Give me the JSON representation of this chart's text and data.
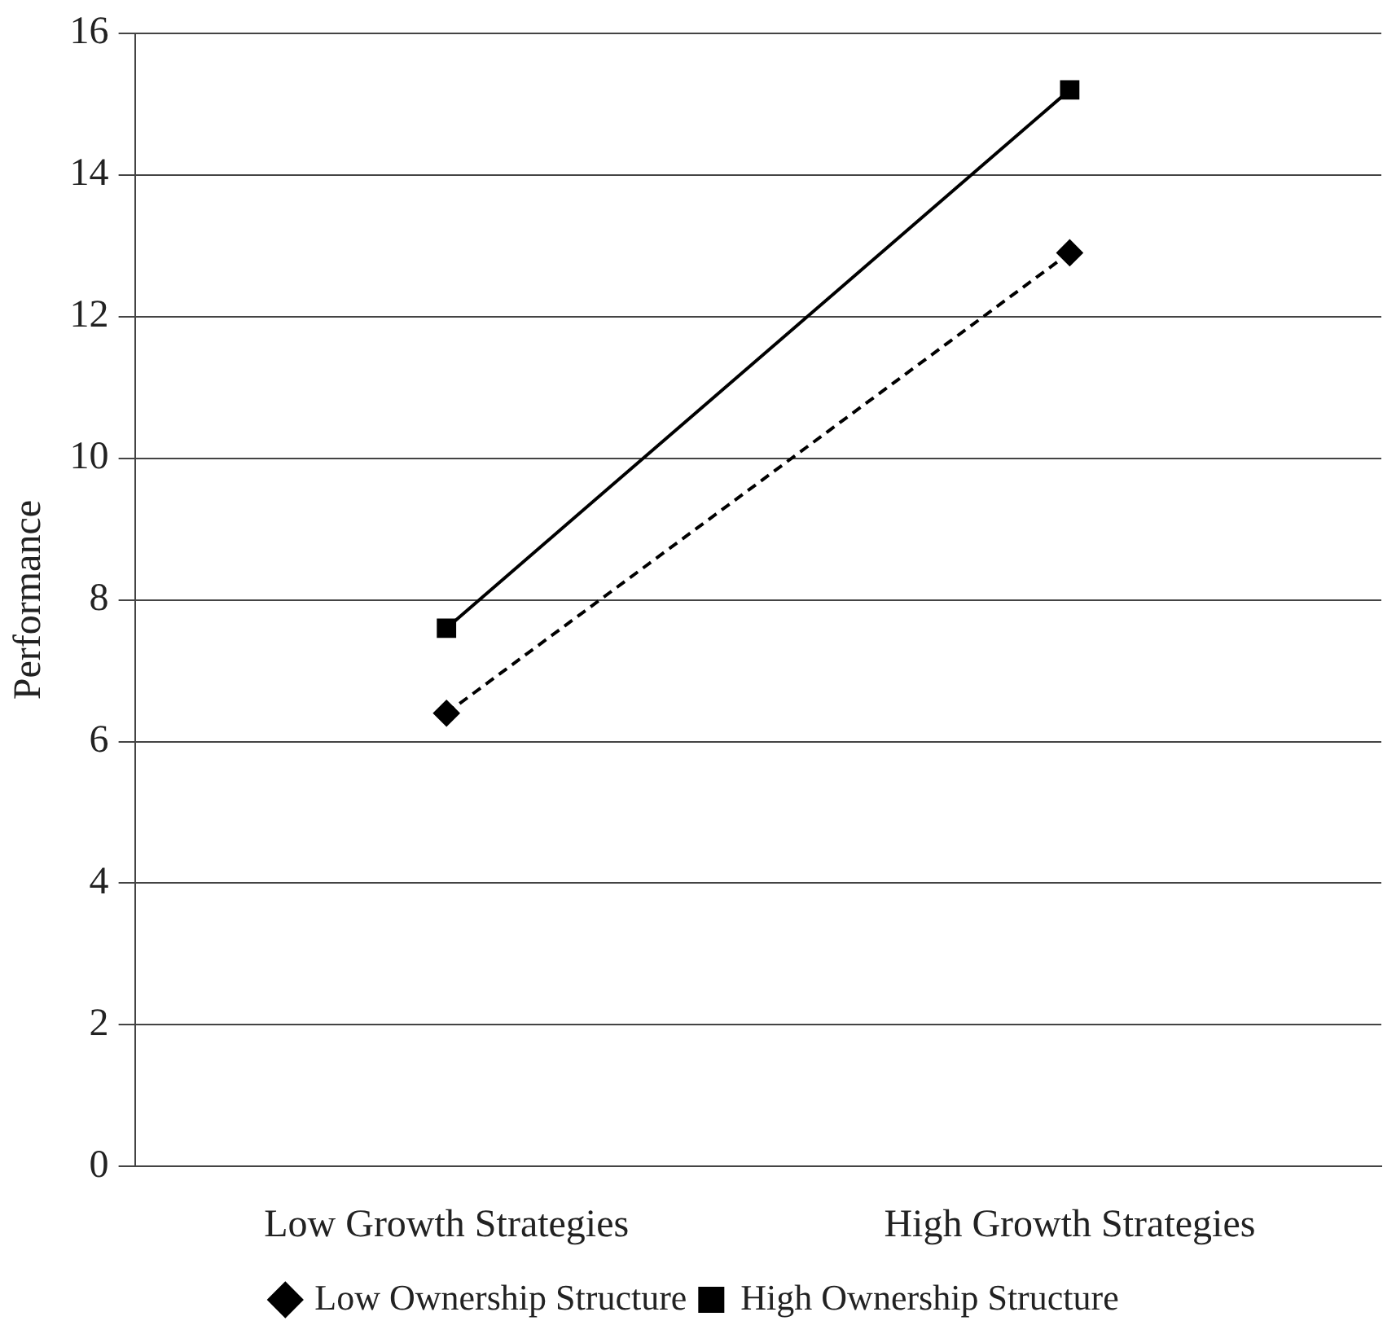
{
  "chart_data": {
    "type": "line",
    "ylabel": "Performance",
    "categories": [
      "Low Growth Strategies",
      "High Growth Strategies"
    ],
    "series": [
      {
        "name": "Low Ownership Structure",
        "color": "#000000",
        "values": [
          6.4,
          12.9
        ],
        "marker": "diamond",
        "line_style": "dashed"
      },
      {
        "name": "High Ownership Structure",
        "color": "#000000",
        "values": [
          7.6,
          15.2
        ],
        "marker": "square",
        "line_style": "solid"
      }
    ],
    "ylim": [
      0,
      16
    ],
    "yticks": [
      0,
      2,
      4,
      6,
      8,
      10,
      12,
      14,
      16
    ],
    "grid": "y",
    "legend": "bottom"
  }
}
